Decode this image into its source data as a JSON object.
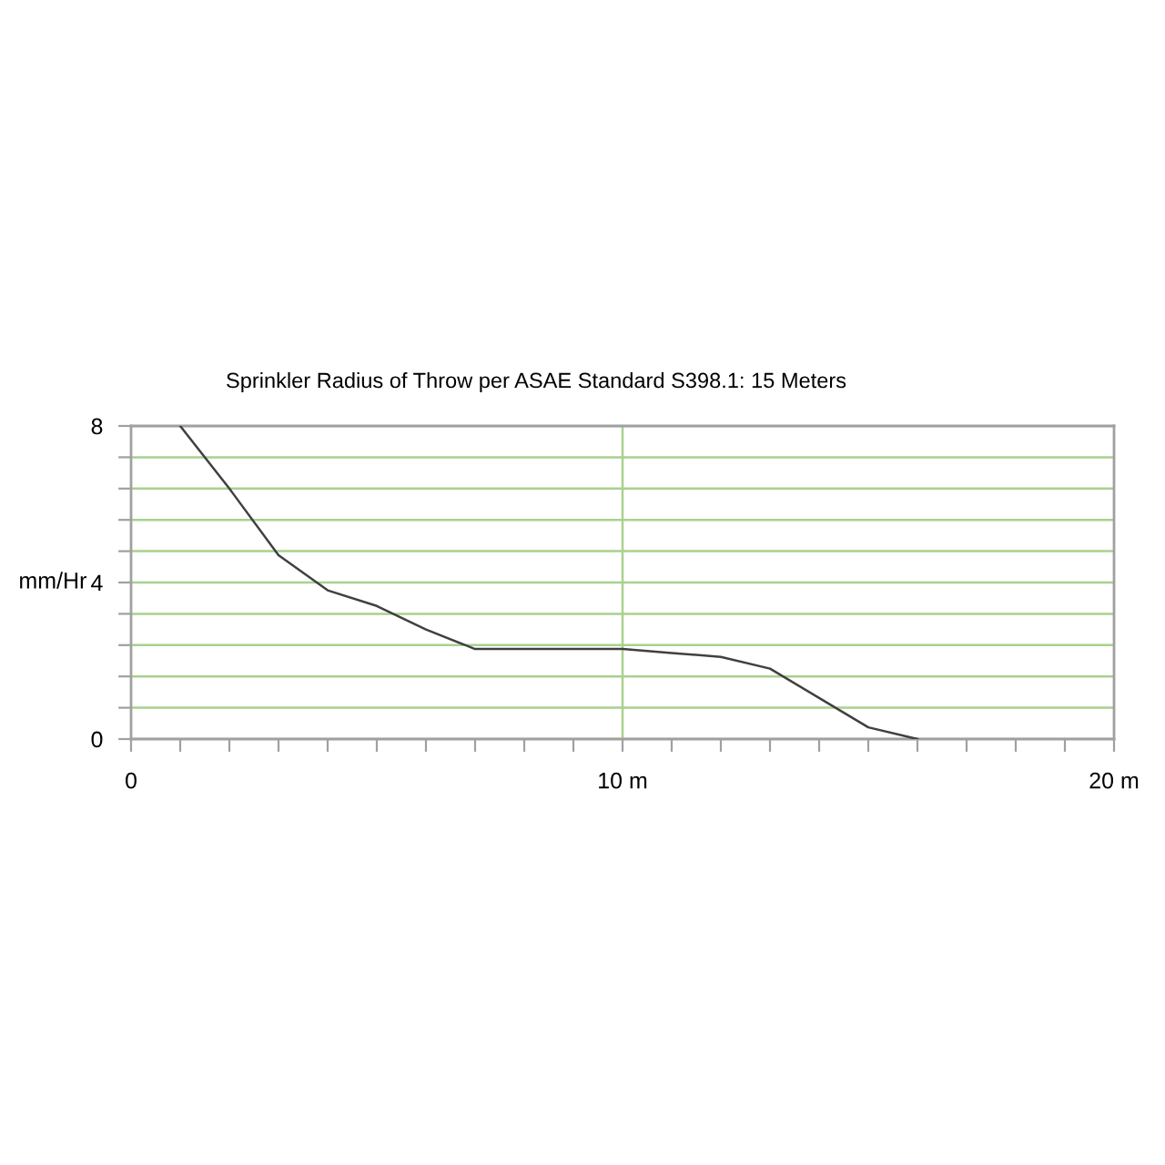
{
  "chart_data": {
    "type": "line",
    "title": "Sprinkler Radius of Throw per ASAE Standard S398.1: 15 Meters",
    "ylabel": "mm/Hr",
    "x": [
      1,
      2,
      3,
      4,
      5,
      6,
      7,
      10,
      11,
      12,
      13,
      14,
      15,
      16
    ],
    "values": [
      8,
      6.4,
      4.7,
      3.8,
      3.4,
      2.8,
      2.3,
      2.3,
      2.2,
      2.1,
      1.8,
      1.05,
      0.3,
      0
    ],
    "color": "#404040",
    "xlim": [
      0,
      20
    ],
    "ylim": [
      0,
      8
    ],
    "xticks": [
      0,
      {
        "value": 1,
        "label": null
      },
      {
        "value": 2,
        "label": null
      },
      {
        "value": 3,
        "label": null
      },
      {
        "value": 4,
        "label": null
      },
      {
        "value": 5,
        "label": null
      },
      {
        "value": 6,
        "label": null
      },
      {
        "value": 7,
        "label": null
      },
      {
        "value": 8,
        "label": null
      },
      {
        "value": 9,
        "label": null
      },
      {
        "value": 10,
        "label": "10 m"
      },
      {
        "value": 11,
        "label": null
      },
      {
        "value": 12,
        "label": null
      },
      {
        "value": 13,
        "label": null
      },
      {
        "value": 14,
        "label": null
      },
      {
        "value": 15,
        "label": null
      },
      {
        "value": 16,
        "label": null
      },
      {
        "value": 17,
        "label": null
      },
      {
        "value": 18,
        "label": null
      },
      {
        "value": 19,
        "label": null
      },
      {
        "value": 20,
        "label": "20 m"
      }
    ],
    "yticks": [
      0,
      {
        "value": 0.8,
        "label": null
      },
      {
        "value": 1.6,
        "label": null
      },
      {
        "value": 2.4,
        "label": null
      },
      {
        "value": 3.2,
        "label": null
      },
      4,
      {
        "value": 4.8,
        "label": null
      },
      {
        "value": 5.6,
        "label": null
      },
      {
        "value": 6.4,
        "label": null
      },
      {
        "value": 7.2,
        "label": null
      },
      8
    ],
    "grid": "y",
    "ref_lines": [
      {
        "axis": "x",
        "value": 10,
        "color": "#a9d18e"
      }
    ]
  }
}
